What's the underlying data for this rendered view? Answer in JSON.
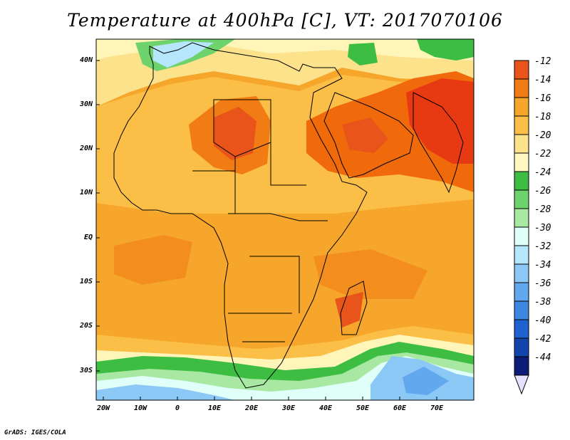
{
  "title": "Temperature at 400hPa [C], VT: 2017070106",
  "credit": "GrADS: IGES/COLA",
  "map": {
    "lat_labels": [
      "40N",
      "30N",
      "20N",
      "10N",
      "EQ",
      "10S",
      "20S",
      "30S"
    ],
    "lon_labels": [
      "20W",
      "10W",
      "0",
      "10E",
      "20E",
      "30E",
      "40E",
      "50E",
      "60E",
      "70E"
    ],
    "field": "Temperature",
    "level": "400hPa",
    "units": "C",
    "valid_time": "2017070106"
  },
  "colorbar": {
    "labels": [
      "-12",
      "-14",
      "-16",
      "-18",
      "-20",
      "-22",
      "-24",
      "-26",
      "-28",
      "-30",
      "-32",
      "-34",
      "-36",
      "-38",
      "-40",
      "-42",
      "-44"
    ],
    "colors": [
      "#e83a12",
      "#f06a0c",
      "#f69a16",
      "#fbbf47",
      "#fde28c",
      "#fff8c0",
      "#3ebd43",
      "#6ed36c",
      "#a8e8a2",
      "#e0fff8",
      "#b6e6fc",
      "#8cc8f5",
      "#62a8ee",
      "#3c88e0",
      "#1e62cf",
      "#1244ab",
      "#0c1c78"
    ]
  }
}
